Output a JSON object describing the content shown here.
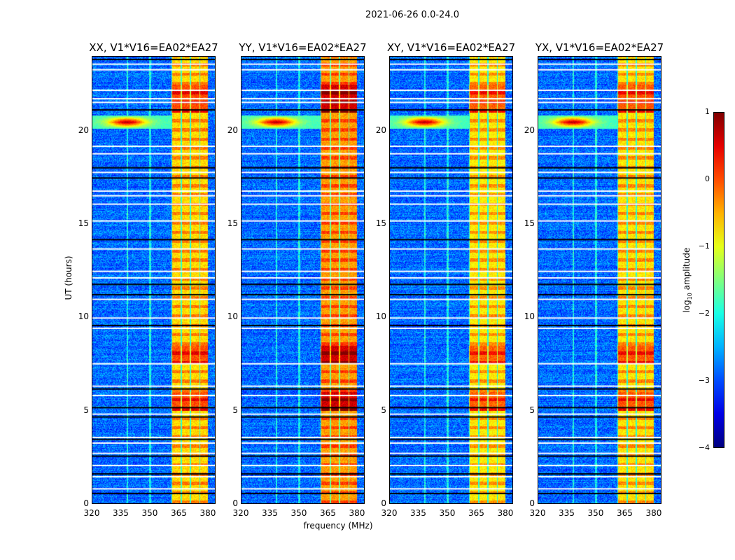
{
  "chart_data": {
    "type": "heatmap",
    "title": "2021-06-26 0.0-24.0",
    "xlabel": "frequency (MHz)",
    "ylabel": "UT (hours)",
    "xlim": [
      320,
      384
    ],
    "ylim": [
      0,
      24
    ],
    "xticks": [
      "320",
      "335",
      "350",
      "365",
      "380"
    ],
    "yticks": [
      "0",
      "5",
      "10",
      "15",
      "20"
    ],
    "panels": [
      {
        "title": "XX, V1*V16=EA02*EA27",
        "band_strength": 0.0
      },
      {
        "title": "YY, V1*V16=EA02*EA27",
        "band_strength": 0.3
      },
      {
        "title": "XY, V1*V16=EA02*EA27",
        "band_strength": -0.1
      },
      {
        "title": "YX, V1*V16=EA02*EA27",
        "band_strength": -0.05
      }
    ],
    "background_log_amplitude": -3,
    "band_mhz": [
      361,
      380
    ],
    "band_log_amplitude": -0.7,
    "bright_periods_hours": [
      [
        21,
        22.5
      ],
      [
        5,
        6
      ],
      [
        7.5,
        8.5
      ]
    ],
    "rfi_burst": {
      "time_hours": 20.5,
      "center_mhz": 338,
      "peak_log_amplitude": 0.8
    },
    "flagged_white_rows_hours": [
      23.6,
      23.3,
      22.2,
      21.75,
      21.55,
      19.2,
      18.8,
      17.8,
      16.8,
      16.55,
      16.1,
      15.2,
      13.7,
      12.5,
      12.15,
      11.0,
      10.0,
      9.45,
      7.55,
      6.35,
      5.85,
      4.85,
      3.6,
      3.3,
      2.75,
      2.1,
      1.5,
      0.85
    ],
    "flagged_black_rows_hours": [
      23.85,
      21.15,
      18.05,
      17.5,
      14.2,
      11.8,
      11.25,
      9.6,
      6.2,
      5.2,
      4.7,
      3.5,
      2.6,
      1.65,
      0.6
    ],
    "colorbar": {
      "label": "log10 amplitude",
      "label_base": "log",
      "label_sub": "10",
      "label_rest": " amplitude",
      "range": [
        -4,
        1
      ],
      "ticks": [
        "1",
        "0",
        "−1",
        "−2",
        "−3",
        "−4"
      ]
    }
  }
}
